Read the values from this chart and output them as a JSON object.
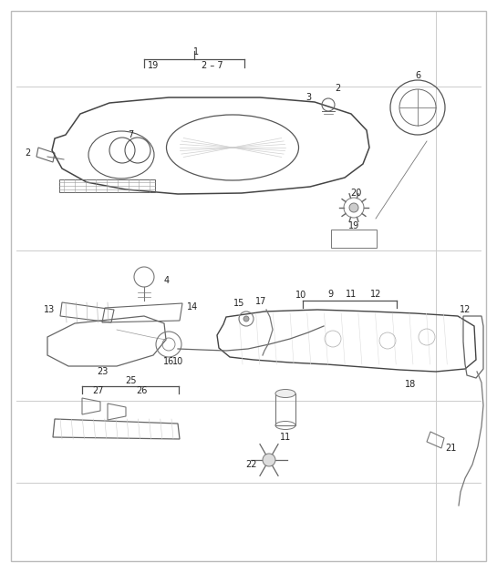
{
  "bg_color": "#ffffff",
  "border_color": "#bbbbbb",
  "grid_color": "#cccccc",
  "part_color": "#505050",
  "label_color": "#222222",
  "fig_width": 5.45,
  "fig_height": 6.28,
  "dpi": 100,
  "font_size": 7.0
}
